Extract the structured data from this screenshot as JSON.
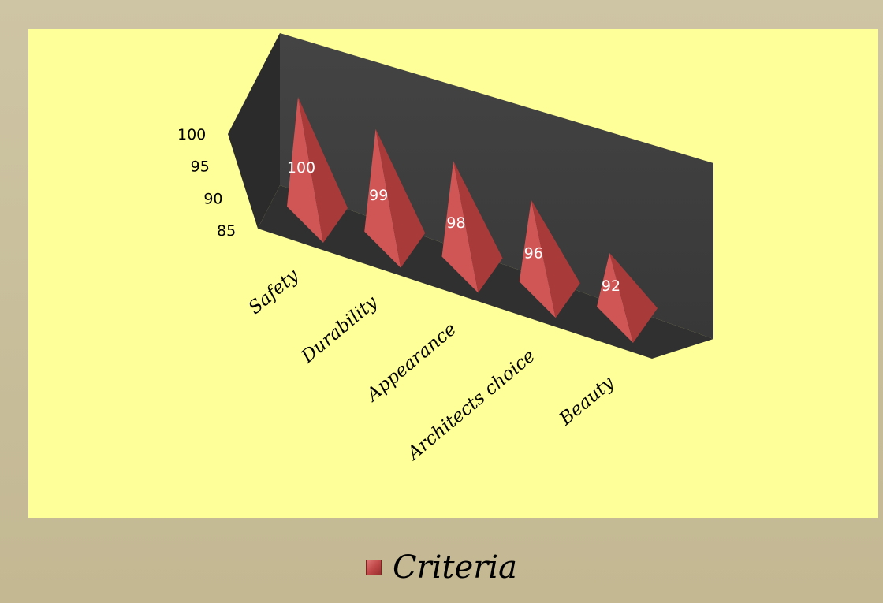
{
  "chart_data": {
    "type": "bar",
    "bar_shape": "pyramid-3d",
    "categories": [
      "Safety",
      "Durability",
      "Appearance",
      "Architects choice",
      "Beauty"
    ],
    "series": [
      {
        "name": "Criteria",
        "values": [
          100,
          99,
          98,
          96,
          92
        ]
      }
    ],
    "data_labels": [
      "100",
      "99",
      "98",
      "96",
      "92"
    ],
    "y_ticks": [
      "85",
      "90",
      "95",
      "100"
    ],
    "ylim": [
      85,
      100
    ],
    "title": "",
    "xlabel": "",
    "ylabel": "",
    "legend": {
      "position": "bottom",
      "entries": [
        "Criteria"
      ]
    },
    "colors": {
      "series": "#c0504d",
      "plot_background": "#ffff99",
      "frame_background": "#c7bd9b",
      "walls": "#3a3a3a",
      "floor": "#2e2e2e"
    },
    "grid": false
  }
}
